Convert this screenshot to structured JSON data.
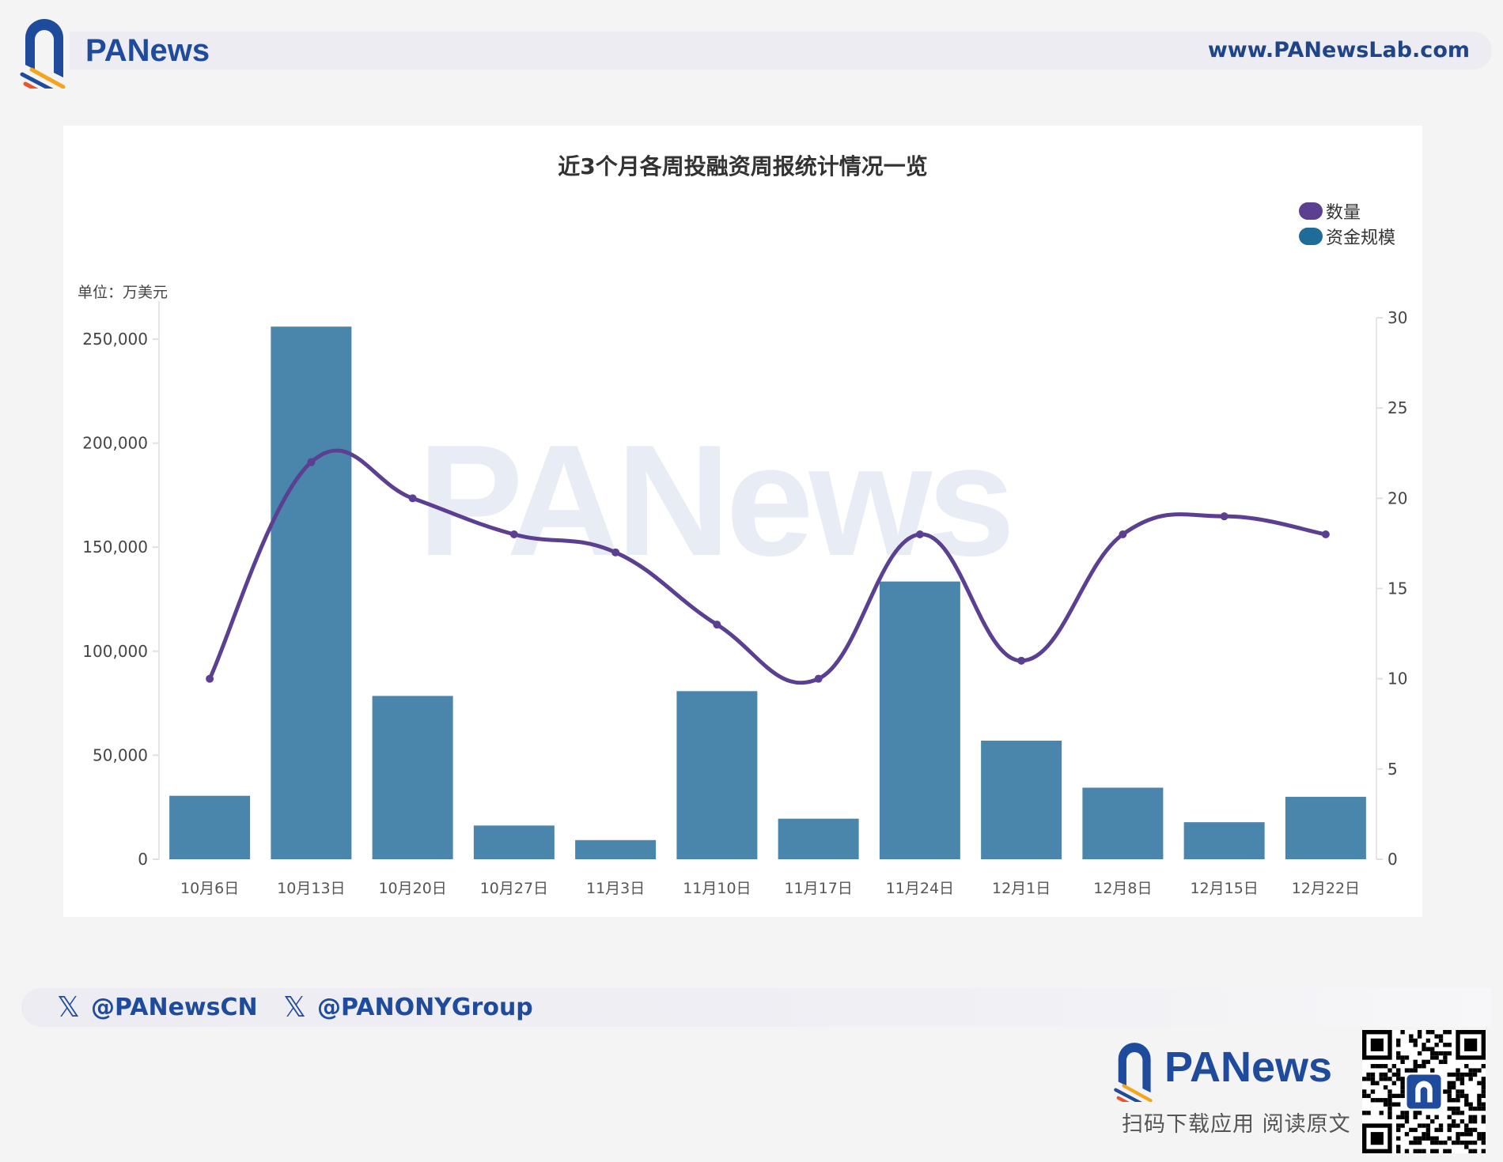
{
  "header": {
    "brand": "PANews",
    "url": "www.PANewsLab.com"
  },
  "chart_card": {
    "title": "近3个月各周投融资周报统计情况一览",
    "unit_label": "单位：万美元",
    "legend": [
      {
        "label": "数量",
        "color": "#5b3f91"
      },
      {
        "label": "资金规模",
        "color": "#1f6b99"
      }
    ],
    "watermark": "PANews"
  },
  "chart_data": {
    "type": "bar+line",
    "title": "近3个月各周投融资周报统计情况一览",
    "categories": [
      "10月6日",
      "10月13日",
      "10月20日",
      "10月27日",
      "11月3日",
      "11月10日",
      "11月17日",
      "11月24日",
      "12月1日",
      "12月8日",
      "12月15日",
      "12月22日"
    ],
    "series": [
      {
        "name": "资金规模",
        "type": "bar",
        "axis": "left",
        "color": "#4a86ab",
        "values": [
          30500,
          256000,
          78500,
          16200,
          9200,
          80800,
          19500,
          133500,
          57000,
          34400,
          17800,
          30000
        ]
      },
      {
        "name": "数量",
        "type": "line",
        "axis": "right",
        "color": "#5b3f91",
        "smooth": true,
        "values": [
          10,
          22,
          20,
          18,
          17,
          13,
          10,
          18,
          11,
          18,
          19,
          18
        ]
      }
    ],
    "ylabel": "单位：万美元",
    "y_left": {
      "ticks": [
        0,
        50000,
        100000,
        150000,
        200000,
        250000
      ],
      "tick_labels": [
        "0",
        "50,000",
        "100,000",
        "150,000",
        "200,000",
        "250,000"
      ]
    },
    "y_right": {
      "ticks": [
        0,
        5,
        10,
        15,
        20,
        25,
        30
      ],
      "tick_labels": [
        "0",
        "5",
        "10",
        "15",
        "20",
        "25",
        "30"
      ],
      "range": [
        0,
        30
      ]
    },
    "grid": false,
    "legend_position": "top-right"
  },
  "footer": {
    "social": [
      {
        "icon": "x-logo-icon",
        "handle": "@PANewsCN"
      },
      {
        "icon": "x-logo-icon",
        "handle": "@PANONYGroup"
      }
    ],
    "brand": "PANews",
    "download_text": "扫码下载应用  阅读原文",
    "x_glyph": "𝕏"
  }
}
